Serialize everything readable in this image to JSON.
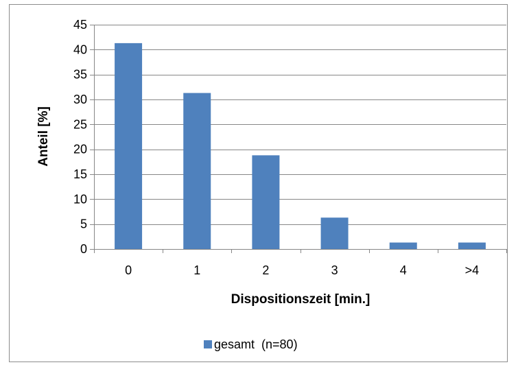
{
  "chart_data": {
    "type": "bar",
    "categories": [
      "0",
      "1",
      "2",
      "3",
      "4",
      ">4"
    ],
    "series": [
      {
        "name": "gesamt  (n=80)",
        "values": [
          41.3,
          31.3,
          18.8,
          6.3,
          1.3,
          1.3
        ]
      }
    ],
    "xlabel": "Dispositionszeit [min.]",
    "ylabel": "Anteil [%]",
    "ylim": [
      0,
      45
    ],
    "yticks": [
      0,
      5,
      10,
      15,
      20,
      25,
      30,
      35,
      40,
      45
    ],
    "grid": true,
    "legend": "bottom",
    "colors": {
      "bar": "#4f81bd",
      "grid": "#868686",
      "axis": "#868686",
      "frame": "#8c8c8c"
    }
  }
}
